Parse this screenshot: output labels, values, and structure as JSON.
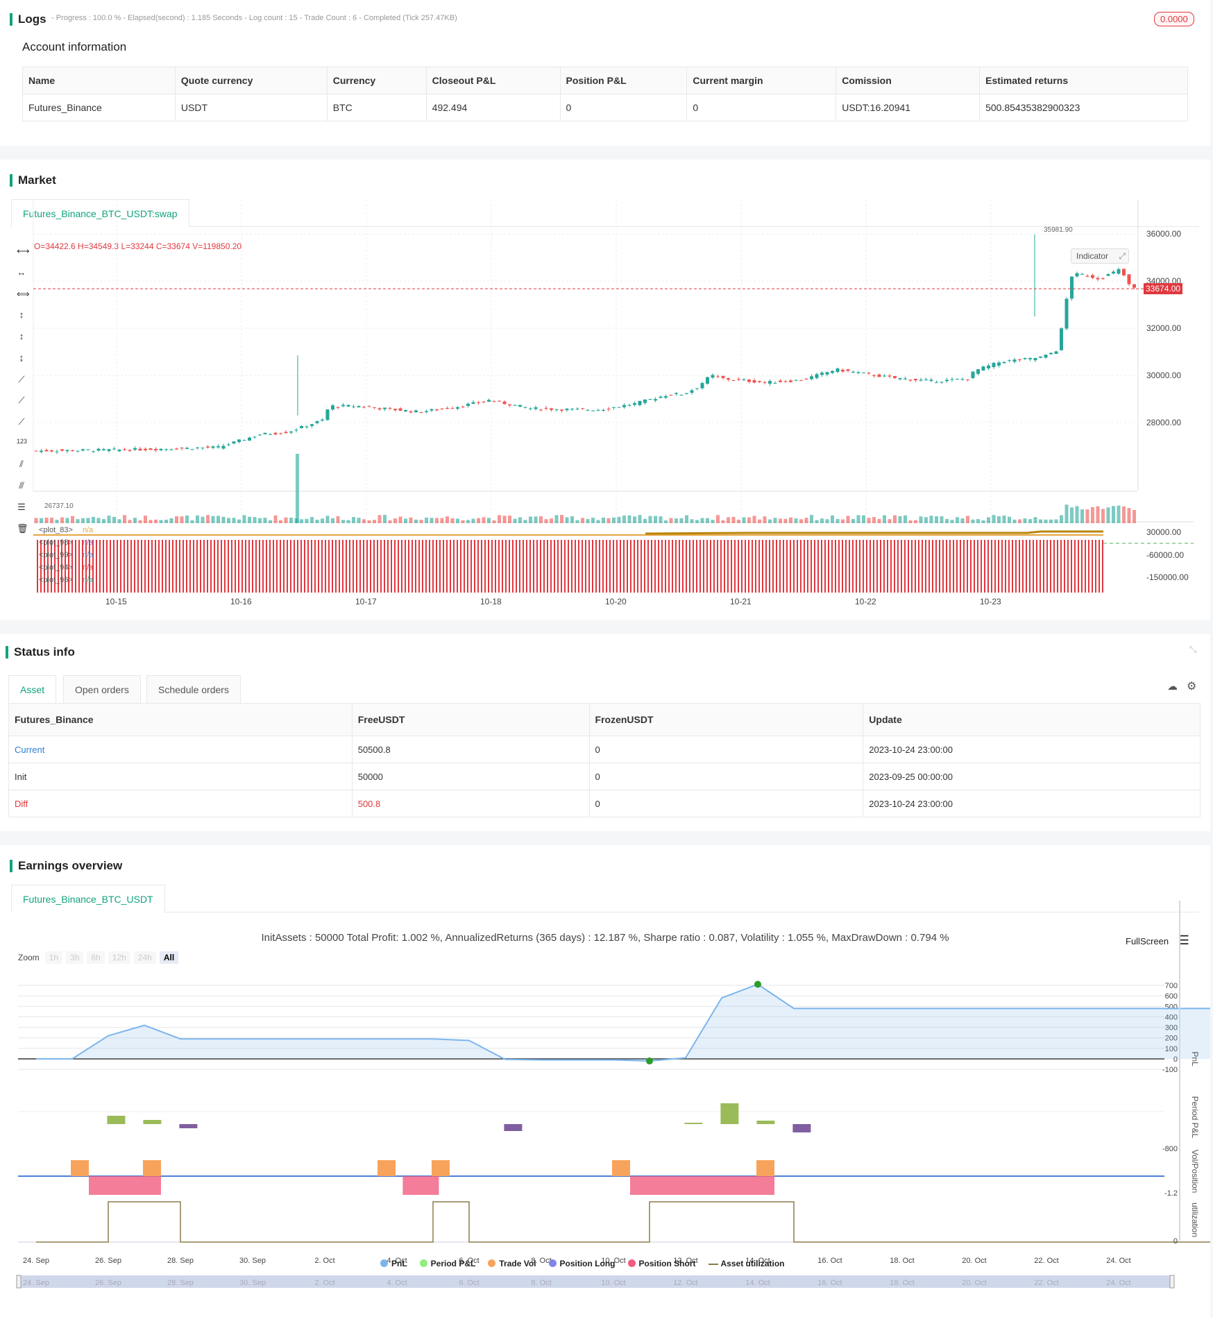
{
  "logs": {
    "title": "Logs",
    "progress": "- Progress : 100.0 % - Elapsed(second) : 1.185  Seconds - Log count : 15 - Trade Count : 6 - Completed (Tick 257.47KB)",
    "badge": "0.0000",
    "account_title": "Account information",
    "columns": [
      "Name",
      "Quote currency",
      "Currency",
      "Closeout P&L",
      "Position P&L",
      "Current margin",
      "Comission",
      "Estimated returns"
    ],
    "row": [
      "Futures_Binance",
      "USDT",
      "BTC",
      "492.494",
      "0",
      "0",
      "USDT:16.20941",
      "500.85435382900323"
    ]
  },
  "market": {
    "title": "Market",
    "tab": "Futures_Binance_BTC_USDT:swap",
    "ohlc": "O=34422.6 H=34549.3 L=33244 C=33674 V=119850.20",
    "indicator_btn": "Indicator",
    "last_price": "33674.00",
    "high_label": "35981.90",
    "low_label": "26737.10",
    "price_ticks": [
      "36000.00",
      "34000.00",
      "32000.00",
      "30000.00",
      "28000.00"
    ],
    "ind_ticks": [
      "30000.00",
      "-60000.00",
      "-150000.00"
    ],
    "x_ticks": [
      "10-15",
      "10-16",
      "10-17",
      "10-18",
      "10-20",
      "10-21",
      "10-22",
      "10-23"
    ],
    "plots": [
      {
        "name": "<plot_83>",
        "value": "n/a",
        "color": "#e8a33d"
      },
      {
        "name": "<plot_98>",
        "value": "n/a",
        "color": "#7f5fc0"
      },
      {
        "name": "<plot_99>",
        "value": "n/a",
        "color": "#4a90d9"
      },
      {
        "name": "<plot_94>",
        "value": "n/a",
        "color": "#e0383e"
      },
      {
        "name": "<plot_96>",
        "value": "n/a",
        "color": "#26a69a"
      }
    ]
  },
  "status": {
    "title": "Status info",
    "tabs": [
      "Asset",
      "Open orders",
      "Schedule orders"
    ],
    "columns": [
      "Futures_Binance",
      "FreeUSDT",
      "FrozenUSDT",
      "Update"
    ],
    "rows": [
      [
        "Current",
        "50500.8",
        "0",
        "2023-10-24 23:00:00"
      ],
      [
        "Init",
        "50000",
        "0",
        "2023-09-25 00:00:00"
      ],
      [
        "Diff",
        "500.8",
        "0",
        "2023-10-24 23:00:00"
      ]
    ]
  },
  "earnings": {
    "title": "Earnings overview",
    "tab": "Futures_Binance_BTC_USDT",
    "summary": "InitAssets : 50000 Total Profit: 1.002 %, AnnualizedReturns (365 days) : 12.187 %, Sharpe ratio : 0.087, Volatility : 1.055 %, MaxDrawDown : 0.794 %",
    "fullscreen": "FullScreen",
    "zoom_label": "Zoom",
    "zoom_options": [
      "1h",
      "3h",
      "8h",
      "12h",
      "24h",
      "All"
    ],
    "pnl_ticks": [
      "700",
      "600",
      "500",
      "400",
      "300",
      "200",
      "100",
      "0",
      "-100"
    ],
    "axis_titles": [
      "PnL",
      "Period P&L",
      "Vol/Position",
      "utilization"
    ],
    "period_tick": "-800",
    "vol_tick": "-1.2",
    "util_tick": "0",
    "x_ticks": [
      "24. Sep",
      "26. Sep",
      "28. Sep",
      "30. Sep",
      "2. Oct",
      "4. Oct",
      "6. Oct",
      "8. Oct",
      "10. Oct",
      "12. Oct",
      "14. Oct",
      "16. Oct",
      "18. Oct",
      "20. Oct",
      "22. Oct",
      "24. Oct"
    ],
    "legend": [
      {
        "name": "PnL",
        "color": "#7cb5ec"
      },
      {
        "name": "Period P&L",
        "color": "#90ed7d"
      },
      {
        "name": "Trade Vol",
        "color": "#f7a35c"
      },
      {
        "name": "Position Long",
        "color": "#8085e9"
      },
      {
        "name": "Position Short",
        "color": "#f15c80"
      },
      {
        "name": "Asset utilization",
        "color": "#8d7a4a"
      }
    ]
  }
}
